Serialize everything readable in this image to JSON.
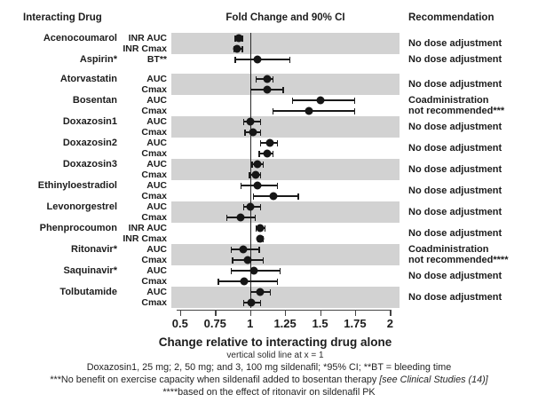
{
  "header": {
    "col_drug": "Interacting Drug",
    "col_plot": "Fold Change and 90% CI",
    "col_rec": "Recommendation"
  },
  "colors": {
    "band_gray": "#d2d2d2",
    "marker": "#161616",
    "reference_line": "#2a2a2a",
    "text": "#1c1c1c"
  },
  "chart_data": {
    "type": "forest",
    "title": "Fold Change and 90% CI",
    "xlabel": "Change relative to interacting drug alone",
    "ref_note": "vertical solid line at x = 1",
    "reference_line_x": 1,
    "x_ticks": [
      0.5,
      0.75,
      1,
      1.25,
      1.5,
      1.75,
      2
    ],
    "xlim": [
      0.5,
      2
    ],
    "grid": false,
    "groups": [
      {
        "drug": "Acenocoumarol",
        "shaded": true,
        "rec_lines": [
          "No dose adjustment"
        ],
        "rows": [
          {
            "metric": "INR AUC",
            "value": 0.92,
            "ci": [
              0.89,
              0.95
            ]
          },
          {
            "metric": "INR Cmax",
            "value": 0.91,
            "ci": [
              0.88,
              0.95
            ]
          }
        ]
      },
      {
        "drug": "Aspirin*",
        "shaded": false,
        "spacer_after": true,
        "rec_lines": [
          "No dose adjustment"
        ],
        "rows": [
          {
            "metric": "BT**",
            "value": 1.05,
            "ci": [
              0.89,
              1.29
            ]
          }
        ]
      },
      {
        "drug": "Atorvastatin",
        "shaded": true,
        "rec_lines": [
          "No dose adjustment"
        ],
        "rows": [
          {
            "metric": "AUC",
            "value": 1.12,
            "ci": [
              1.04,
              1.17
            ]
          },
          {
            "metric": "Cmax",
            "value": 1.12,
            "ci": [
              1.0,
              1.24
            ]
          }
        ]
      },
      {
        "drug": "Bosentan",
        "shaded": false,
        "rec_lines": [
          "Coadministration",
          "not recommended***"
        ],
        "rows": [
          {
            "metric": "AUC",
            "value": 1.5,
            "ci": [
              1.3,
              1.75
            ]
          },
          {
            "metric": "Cmax",
            "value": 1.42,
            "ci": [
              1.16,
              1.75
            ]
          }
        ]
      },
      {
        "drug": "Doxazosin1",
        "shaded": true,
        "rec_lines": [
          "No dose adjustment"
        ],
        "rows": [
          {
            "metric": "AUC",
            "value": 1.0,
            "ci": [
              0.95,
              1.08
            ]
          },
          {
            "metric": "Cmax",
            "value": 1.02,
            "ci": [
              0.96,
              1.08
            ]
          }
        ]
      },
      {
        "drug": "Doxazosin2",
        "shaded": false,
        "rec_lines": [
          "No dose adjustment"
        ],
        "rows": [
          {
            "metric": "AUC",
            "value": 1.14,
            "ci": [
              1.07,
              1.2
            ]
          },
          {
            "metric": "Cmax",
            "value": 1.12,
            "ci": [
              1.06,
              1.17
            ]
          }
        ]
      },
      {
        "drug": "Doxazosin3",
        "shaded": true,
        "rec_lines": [
          "No dose adjustment"
        ],
        "rows": [
          {
            "metric": "AUC",
            "value": 1.05,
            "ci": [
              1.01,
              1.1
            ]
          },
          {
            "metric": "Cmax",
            "value": 1.04,
            "ci": [
              0.99,
              1.08
            ]
          }
        ]
      },
      {
        "drug": "Ethinyloestradiol",
        "shaded": false,
        "rec_lines": [
          "No dose adjustment"
        ],
        "rows": [
          {
            "metric": "AUC",
            "value": 1.05,
            "ci": [
              0.93,
              1.2
            ]
          },
          {
            "metric": "Cmax",
            "value": 1.17,
            "ci": [
              1.02,
              1.35
            ]
          }
        ]
      },
      {
        "drug": "Levonorgestrel",
        "shaded": true,
        "rec_lines": [
          "No dose adjustment"
        ],
        "rows": [
          {
            "metric": "AUC",
            "value": 1.0,
            "ci": [
              0.95,
              1.08
            ]
          },
          {
            "metric": "Cmax",
            "value": 0.93,
            "ci": [
              0.83,
              1.04
            ]
          }
        ]
      },
      {
        "drug": "Phenprocoumon",
        "shaded": false,
        "rec_lines": [
          "No dose adjustment"
        ],
        "rows": [
          {
            "metric": "INR AUC",
            "value": 1.07,
            "ci": [
              1.04,
              1.11
            ]
          },
          {
            "metric": "INR Cmax",
            "value": 1.07,
            "ci": [
              1.05,
              1.1
            ]
          }
        ]
      },
      {
        "drug": "Ritonavir*",
        "shaded": true,
        "rec_lines": [
          "Coadministration",
          "not recommended****"
        ],
        "rows": [
          {
            "metric": "AUC",
            "value": 0.95,
            "ci": [
              0.86,
              1.07
            ]
          },
          {
            "metric": "Cmax",
            "value": 0.98,
            "ci": [
              0.87,
              1.1
            ]
          }
        ]
      },
      {
        "drug": "Saquinavir*",
        "shaded": false,
        "rec_lines": [
          "No dose adjustment"
        ],
        "rows": [
          {
            "metric": "AUC",
            "value": 1.03,
            "ci": [
              0.86,
              1.22
            ]
          },
          {
            "metric": "Cmax",
            "value": 0.96,
            "ci": [
              0.77,
              1.2
            ]
          }
        ]
      },
      {
        "drug": "Tolbutamide",
        "shaded": true,
        "rec_lines": [
          "No dose adjustment"
        ],
        "rows": [
          {
            "metric": "AUC",
            "value": 1.07,
            "ci": [
              1.0,
              1.15
            ]
          },
          {
            "metric": "Cmax",
            "value": 1.01,
            "ci": [
              0.95,
              1.08
            ]
          }
        ]
      }
    ]
  },
  "footnotes": {
    "line1": "Doxazosin1, 25 mg; 2, 50 mg; and 3, 100 mg sildenafil; *95% CI; **BT = bleeding time",
    "line2_text": "***No benefit on exercise capacity when sildenafil added to bosentan therapy ",
    "line2_italic": "[see Clinical Studies (14)]",
    "line3": "****based on the effect of ritonavir on sildenafil PK"
  }
}
